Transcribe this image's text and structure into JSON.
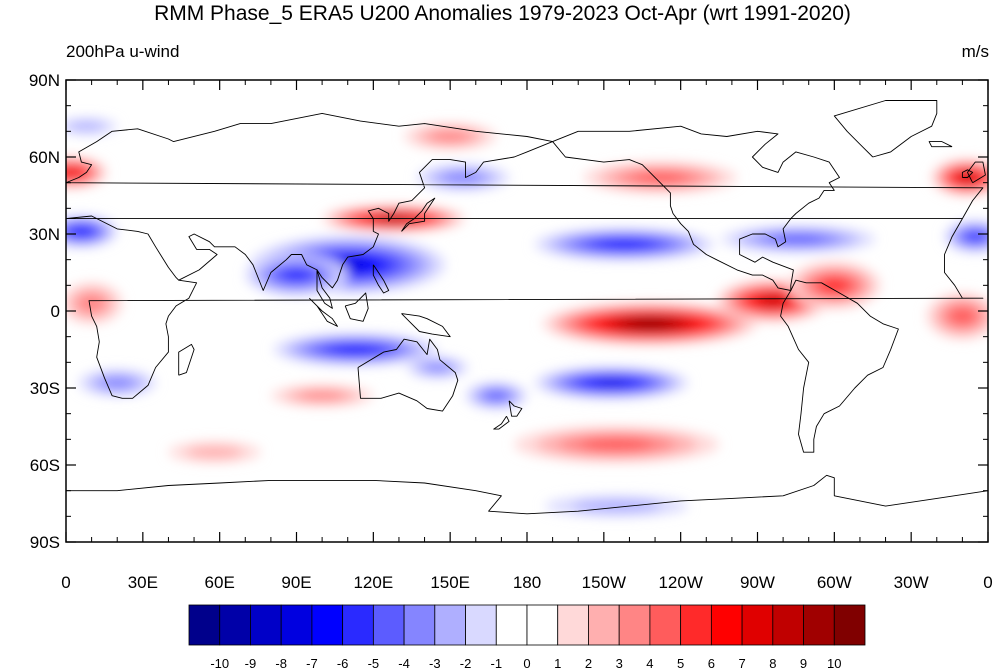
{
  "title": "RMM Phase_5 ERA5 U200 Anomalies 1979-2023 Oct-Apr (wrt 1991-2020)",
  "left_subtitle": "200hPa u-wind",
  "right_subtitle": "m/s",
  "lat_ticks": [
    {
      "value": 90,
      "label": "90N"
    },
    {
      "value": 60,
      "label": "60N"
    },
    {
      "value": 30,
      "label": "30N"
    },
    {
      "value": 0,
      "label": "0"
    },
    {
      "value": -30,
      "label": "30S"
    },
    {
      "value": -60,
      "label": "60S"
    },
    {
      "value": -90,
      "label": "90S"
    }
  ],
  "lon_ticks": [
    {
      "value": 0,
      "label": "0"
    },
    {
      "value": 30,
      "label": "30E"
    },
    {
      "value": 60,
      "label": "60E"
    },
    {
      "value": 90,
      "label": "90E"
    },
    {
      "value": 120,
      "label": "120E"
    },
    {
      "value": 150,
      "label": "150E"
    },
    {
      "value": 180,
      "label": "180"
    },
    {
      "value": 210,
      "label": "150W"
    },
    {
      "value": 240,
      "label": "120W"
    },
    {
      "value": 270,
      "label": "90W"
    },
    {
      "value": 300,
      "label": "60W"
    },
    {
      "value": 330,
      "label": "30W"
    },
    {
      "value": 360,
      "label": "0"
    }
  ],
  "colorbar": {
    "colors": [
      "#00008b",
      "#0000a8",
      "#0000c8",
      "#0000e0",
      "#0000ff",
      "#2a2aff",
      "#5c5cff",
      "#8585ff",
      "#afafff",
      "#d9d9ff",
      "#ffffff",
      "#ffffff",
      "#ffd9d9",
      "#ffafaf",
      "#ff8585",
      "#ff5c5c",
      "#ff2a2a",
      "#ff0000",
      "#e00000",
      "#c00000",
      "#a00000",
      "#800000"
    ],
    "labels": [
      "-10",
      "-9",
      "-8",
      "-7",
      "-6",
      "-5",
      "-4",
      "-3",
      "-2",
      "-1",
      "0",
      "1",
      "2",
      "3",
      "4",
      "5",
      "6",
      "7",
      "8",
      "9",
      "10"
    ]
  },
  "anomaly_blobs": [
    {
      "lon": 110,
      "lat": 18,
      "rx": 38,
      "ry": 11,
      "value": -7
    },
    {
      "lon": 90,
      "lat": 14,
      "rx": 20,
      "ry": 8,
      "value": -5
    },
    {
      "lon": 113,
      "lat": -15,
      "rx": 32,
      "ry": 6,
      "value": -6
    },
    {
      "lon": 145,
      "lat": -22,
      "rx": 12,
      "ry": 4,
      "value": -3
    },
    {
      "lon": 20,
      "lat": -28,
      "rx": 15,
      "ry": 5,
      "value": -3
    },
    {
      "lon": 213,
      "lat": -28,
      "rx": 30,
      "ry": 6,
      "value": -7
    },
    {
      "lon": 168,
      "lat": -33,
      "rx": 12,
      "ry": 5,
      "value": -4
    },
    {
      "lon": 218,
      "lat": 26,
      "rx": 35,
      "ry": 6,
      "value": -6
    },
    {
      "lon": 286,
      "lat": 28,
      "rx": 30,
      "ry": 5,
      "value": -4
    },
    {
      "lon": 6,
      "lat": 31,
      "rx": 14,
      "ry": 6,
      "value": -6
    },
    {
      "lon": 355,
      "lat": 29,
      "rx": 12,
      "ry": 6,
      "value": -5
    },
    {
      "lon": 8,
      "lat": 72,
      "rx": 12,
      "ry": 3,
      "value": -2
    },
    {
      "lon": 215,
      "lat": -76,
      "rx": 28,
      "ry": 4,
      "value": -2
    },
    {
      "lon": 155,
      "lat": 52,
      "rx": 18,
      "ry": 5,
      "value": -3
    },
    {
      "lon": 128,
      "lat": 36,
      "rx": 28,
      "ry": 5,
      "value": 9
    },
    {
      "lon": 228,
      "lat": -5,
      "rx": 42,
      "ry": 8,
      "value": 10
    },
    {
      "lon": 276,
      "lat": 4,
      "rx": 22,
      "ry": 8,
      "value": 8
    },
    {
      "lon": 300,
      "lat": 10,
      "rx": 18,
      "ry": 9,
      "value": 5
    },
    {
      "lon": 2,
      "lat": 54,
      "rx": 14,
      "ry": 6,
      "value": 7
    },
    {
      "lon": 352,
      "lat": 52,
      "rx": 14,
      "ry": 7,
      "value": 8
    },
    {
      "lon": 232,
      "lat": 52,
      "rx": 30,
      "ry": 6,
      "value": 4
    },
    {
      "lon": 150,
      "lat": 68,
      "rx": 18,
      "ry": 5,
      "value": 3
    },
    {
      "lon": 215,
      "lat": -52,
      "rx": 40,
      "ry": 7,
      "value": 4
    },
    {
      "lon": 100,
      "lat": -33,
      "rx": 20,
      "ry": 4,
      "value": 3
    },
    {
      "lon": 10,
      "lat": 3,
      "rx": 12,
      "ry": 8,
      "value": 3
    },
    {
      "lon": 350,
      "lat": -2,
      "rx": 14,
      "ry": 9,
      "value": 4
    },
    {
      "lon": 58,
      "lat": -55,
      "rx": 18,
      "ry": 4,
      "value": 2
    }
  ],
  "coastlines": [
    [
      [
        350,
        36
      ],
      [
        354,
        43
      ],
      [
        358,
        48
      ],
      [
        0,
        50
      ],
      [
        5,
        52
      ],
      [
        8,
        54
      ],
      [
        10,
        57
      ],
      [
        6,
        58
      ],
      [
        5,
        62
      ],
      [
        12,
        66
      ],
      [
        18,
        70
      ],
      [
        28,
        71
      ],
      [
        40,
        67
      ],
      [
        42,
        66
      ],
      [
        58,
        70
      ],
      [
        68,
        73
      ],
      [
        80,
        73
      ],
      [
        100,
        77
      ],
      [
        115,
        74
      ],
      [
        130,
        72
      ],
      [
        140,
        73
      ],
      [
        160,
        70
      ],
      [
        180,
        68
      ],
      [
        190,
        66
      ],
      [
        180,
        62
      ],
      [
        175,
        60
      ],
      [
        163,
        58
      ],
      [
        160,
        54
      ],
      [
        156,
        52
      ],
      [
        156,
        58
      ],
      [
        150,
        59
      ],
      [
        143,
        59
      ],
      [
        138,
        54
      ],
      [
        140,
        48
      ],
      [
        135,
        43
      ],
      [
        130,
        42
      ],
      [
        128,
        38
      ],
      [
        126,
        35
      ],
      [
        126,
        38
      ],
      [
        122,
        40
      ],
      [
        118,
        39
      ],
      [
        120,
        36
      ],
      [
        120,
        31
      ],
      [
        122,
        30
      ],
      [
        120,
        25
      ],
      [
        116,
        22
      ],
      [
        110,
        21
      ],
      [
        108,
        18
      ],
      [
        106,
        12
      ],
      [
        104,
        9
      ],
      [
        100,
        13
      ],
      [
        98,
        16
      ],
      [
        98,
        8
      ],
      [
        101,
        3
      ],
      [
        104,
        1
      ],
      [
        103,
        5
      ],
      [
        100,
        9
      ],
      [
        98,
        16
      ],
      [
        94,
        18
      ],
      [
        92,
        22
      ],
      [
        88,
        22
      ],
      [
        86,
        20
      ],
      [
        80,
        15
      ],
      [
        77,
        8
      ],
      [
        73,
        18
      ],
      [
        70,
        22
      ],
      [
        66,
        25
      ],
      [
        58,
        25
      ],
      [
        56,
        27
      ],
      [
        50,
        30
      ],
      [
        48,
        29
      ],
      [
        51,
        24
      ],
      [
        56,
        24
      ],
      [
        59,
        22
      ],
      [
        52,
        16
      ],
      [
        44,
        12
      ],
      [
        43,
        13
      ],
      [
        40,
        17
      ],
      [
        35,
        25
      ],
      [
        32,
        30
      ],
      [
        28,
        31
      ],
      [
        20,
        32
      ],
      [
        10,
        37
      ],
      [
        0,
        36
      ],
      [
        350,
        36
      ]
    ],
    [
      [
        350,
        36
      ],
      [
        346,
        29
      ],
      [
        343,
        22
      ],
      [
        343,
        15
      ],
      [
        347,
        10
      ],
      [
        350,
        5
      ],
      [
        358,
        5
      ],
      [
        9,
        4
      ],
      [
        10,
        -2
      ],
      [
        12,
        -6
      ],
      [
        13,
        -12
      ],
      [
        12,
        -18
      ],
      [
        15,
        -26
      ],
      [
        18,
        -33
      ],
      [
        22,
        -34
      ],
      [
        26,
        -34
      ],
      [
        32,
        -29
      ],
      [
        35,
        -22
      ],
      [
        40,
        -16
      ],
      [
        40,
        -10
      ],
      [
        39,
        -5
      ],
      [
        40,
        -2
      ],
      [
        43,
        2
      ],
      [
        48,
        5
      ],
      [
        51,
        11
      ],
      [
        44,
        12
      ]
    ],
    [
      [
        44,
        -25
      ],
      [
        47,
        -24
      ],
      [
        50,
        -15
      ],
      [
        49,
        -13
      ],
      [
        44,
        -16
      ],
      [
        44,
        -25
      ]
    ],
    [
      [
        240,
        72
      ],
      [
        220,
        70
      ],
      [
        200,
        70
      ],
      [
        190,
        66
      ],
      [
        195,
        60
      ],
      [
        210,
        58
      ],
      [
        220,
        59
      ],
      [
        225,
        57
      ],
      [
        232,
        50
      ],
      [
        236,
        46
      ],
      [
        236,
        41
      ],
      [
        237,
        38
      ],
      [
        240,
        34
      ],
      [
        243,
        31
      ],
      [
        245,
        26
      ],
      [
        250,
        22
      ],
      [
        254,
        20
      ],
      [
        262,
        16
      ],
      [
        268,
        14
      ],
      [
        272,
        14
      ],
      [
        276,
        12
      ],
      [
        278,
        9
      ],
      [
        283,
        8
      ],
      [
        283,
        10
      ],
      [
        284,
        16
      ],
      [
        276,
        19
      ],
      [
        272,
        21
      ],
      [
        269,
        19
      ],
      [
        263,
        22
      ],
      [
        263,
        28
      ],
      [
        268,
        30
      ],
      [
        273,
        30
      ],
      [
        277,
        28
      ],
      [
        278,
        25
      ],
      [
        281,
        27
      ],
      [
        280,
        32
      ],
      [
        283,
        36
      ],
      [
        285,
        38
      ],
      [
        290,
        42
      ],
      [
        294,
        44
      ],
      [
        296,
        47
      ],
      [
        300,
        47
      ],
      [
        298,
        50
      ],
      [
        302,
        52
      ],
      [
        298,
        58
      ],
      [
        292,
        60
      ],
      [
        285,
        62
      ],
      [
        280,
        58
      ],
      [
        278,
        54
      ],
      [
        272,
        56
      ],
      [
        268,
        60
      ],
      [
        273,
        65
      ],
      [
        278,
        69
      ],
      [
        270,
        70
      ],
      [
        258,
        68
      ],
      [
        248,
        69
      ],
      [
        240,
        72
      ]
    ],
    [
      [
        283,
        8
      ],
      [
        285,
        12
      ],
      [
        289,
        11
      ],
      [
        295,
        11
      ],
      [
        302,
        7
      ],
      [
        309,
        3
      ],
      [
        314,
        -2
      ],
      [
        319,
        -5
      ],
      [
        325,
        -7
      ],
      [
        322,
        -15
      ],
      [
        319,
        -22
      ],
      [
        313,
        -25
      ],
      [
        308,
        -30
      ],
      [
        302,
        -37
      ],
      [
        296,
        -40
      ],
      [
        293,
        -45
      ],
      [
        292,
        -50
      ],
      [
        292,
        -55
      ],
      [
        288,
        -55
      ],
      [
        286,
        -48
      ],
      [
        287,
        -40
      ],
      [
        288,
        -30
      ],
      [
        290,
        -20
      ],
      [
        286,
        -15
      ],
      [
        282,
        -6
      ],
      [
        279,
        -2
      ],
      [
        280,
        3
      ],
      [
        283,
        8
      ]
    ],
    [
      [
        114,
        -22
      ],
      [
        115,
        -34
      ],
      [
        123,
        -34
      ],
      [
        130,
        -32
      ],
      [
        137,
        -35
      ],
      [
        141,
        -38
      ],
      [
        147,
        -39
      ],
      [
        151,
        -33
      ],
      [
        153,
        -27
      ],
      [
        152,
        -24
      ],
      [
        146,
        -19
      ],
      [
        145,
        -15
      ],
      [
        142,
        -11
      ],
      [
        141,
        -17
      ],
      [
        137,
        -12
      ],
      [
        132,
        -11
      ],
      [
        129,
        -15
      ],
      [
        124,
        -16
      ],
      [
        114,
        -22
      ]
    ],
    [
      [
        95,
        5
      ],
      [
        100,
        0
      ],
      [
        104,
        -3
      ],
      [
        106,
        -6
      ],
      [
        102,
        -4
      ],
      [
        98,
        2
      ],
      [
        95,
        5
      ]
    ],
    [
      [
        109,
        2
      ],
      [
        111,
        -3
      ],
      [
        116,
        -4
      ],
      [
        118,
        1
      ],
      [
        117,
        7
      ],
      [
        113,
        3
      ],
      [
        109,
        2
      ]
    ],
    [
      [
        131,
        -1
      ],
      [
        138,
        -2
      ],
      [
        141,
        -3
      ],
      [
        147,
        -6
      ],
      [
        150,
        -10
      ],
      [
        143,
        -9
      ],
      [
        138,
        -8
      ],
      [
        134,
        -4
      ],
      [
        131,
        -1
      ]
    ],
    [
      [
        131,
        31
      ],
      [
        134,
        34
      ],
      [
        140,
        35
      ],
      [
        140,
        38
      ],
      [
        142,
        41
      ],
      [
        144,
        44
      ],
      [
        141,
        42
      ],
      [
        139,
        39
      ],
      [
        136,
        36
      ],
      [
        133,
        34
      ],
      [
        131,
        31
      ]
    ],
    [
      [
        120,
        18
      ],
      [
        122,
        15
      ],
      [
        124,
        12
      ],
      [
        126,
        8
      ],
      [
        124,
        7
      ],
      [
        122,
        10
      ],
      [
        120,
        14
      ],
      [
        120,
        18
      ]
    ],
    [
      [
        173,
        -35
      ],
      [
        175,
        -37
      ],
      [
        178,
        -38
      ],
      [
        176,
        -41
      ],
      [
        174,
        -41
      ],
      [
        173,
        -35
      ]
    ],
    [
      [
        172,
        -41
      ],
      [
        170,
        -44
      ],
      [
        167,
        -46
      ],
      [
        169,
        -46
      ],
      [
        173,
        -43
      ],
      [
        172,
        -41
      ]
    ],
    [
      [
        315,
        60
      ],
      [
        310,
        65
      ],
      [
        305,
        70
      ],
      [
        300,
        76
      ],
      [
        320,
        82
      ],
      [
        340,
        82
      ],
      [
        340,
        77
      ],
      [
        338,
        72
      ],
      [
        330,
        68
      ],
      [
        322,
        62
      ],
      [
        315,
        60
      ]
    ],
    [
      [
        346,
        64
      ],
      [
        338,
        64
      ],
      [
        337,
        66
      ],
      [
        342,
        66
      ],
      [
        346,
        64
      ]
    ],
    [
      [
        354,
        50
      ],
      [
        352,
        54
      ],
      [
        355,
        58
      ],
      [
        358,
        58
      ],
      [
        359,
        53
      ],
      [
        354,
        50
      ]
    ],
    [
      [
        350,
        52
      ],
      [
        350,
        54
      ],
      [
        352,
        55
      ],
      [
        354,
        54
      ],
      [
        352,
        52
      ],
      [
        350,
        52
      ]
    ],
    [
      [
        0,
        -70
      ],
      [
        20,
        -70
      ],
      [
        40,
        -68
      ],
      [
        60,
        -67
      ],
      [
        80,
        -66
      ],
      [
        100,
        -66
      ],
      [
        120,
        -66
      ],
      [
        140,
        -67
      ],
      [
        160,
        -70
      ],
      [
        170,
        -72
      ],
      [
        165,
        -78
      ],
      [
        180,
        -79
      ],
      [
        200,
        -78
      ],
      [
        220,
        -76
      ],
      [
        240,
        -74
      ],
      [
        260,
        -73
      ],
      [
        280,
        -72
      ],
      [
        292,
        -68
      ],
      [
        297,
        -64
      ],
      [
        300,
        -65
      ],
      [
        300,
        -72
      ],
      [
        320,
        -76
      ],
      [
        340,
        -73
      ],
      [
        360,
        -70
      ]
    ]
  ]
}
